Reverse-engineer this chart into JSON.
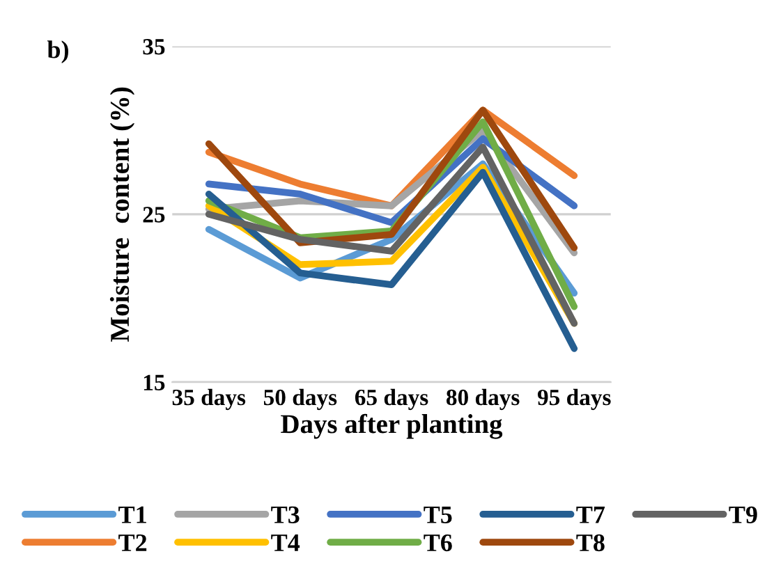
{
  "chart_data": {
    "type": "line",
    "annotations": [
      "b)"
    ],
    "xlabel": "Days after planting",
    "ylabel": "Moisture  content (%)",
    "categories": [
      "35 days",
      "50 days",
      "65 days",
      "80 days",
      "95 days"
    ],
    "ylim": [
      15,
      35
    ],
    "yticks": [
      15,
      25,
      35
    ],
    "grid": "y",
    "legend": "bottom",
    "marker": "none",
    "line_style": "solid",
    "series": [
      {
        "name": "T1",
        "color": "#5b9bd5",
        "values": [
          24.1,
          21.2,
          23.5,
          28.0,
          20.3
        ]
      },
      {
        "name": "T2",
        "color": "#ed7d31",
        "values": [
          28.7,
          26.8,
          25.5,
          31.2,
          27.3
        ]
      },
      {
        "name": "T3",
        "color": "#a5a5a5",
        "values": [
          25.3,
          25.8,
          25.5,
          30.0,
          22.7
        ]
      },
      {
        "name": "T4",
        "color": "#ffc000",
        "values": [
          25.5,
          22.0,
          22.2,
          27.8,
          18.5
        ]
      },
      {
        "name": "T5",
        "color": "#4472c4",
        "values": [
          26.8,
          26.2,
          24.5,
          29.5,
          25.5
        ]
      },
      {
        "name": "T6",
        "color": "#70ad47",
        "values": [
          25.8,
          23.6,
          24.0,
          30.5,
          19.5
        ]
      },
      {
        "name": "T7",
        "color": "#255e91",
        "values": [
          26.2,
          21.5,
          20.8,
          27.5,
          17.0
        ]
      },
      {
        "name": "T8",
        "color": "#9e480e",
        "values": [
          29.2,
          23.3,
          23.8,
          31.2,
          23.0
        ]
      },
      {
        "name": "T9",
        "color": "#636363",
        "values": [
          25.0,
          23.5,
          22.8,
          29.0,
          18.5
        ]
      }
    ]
  }
}
